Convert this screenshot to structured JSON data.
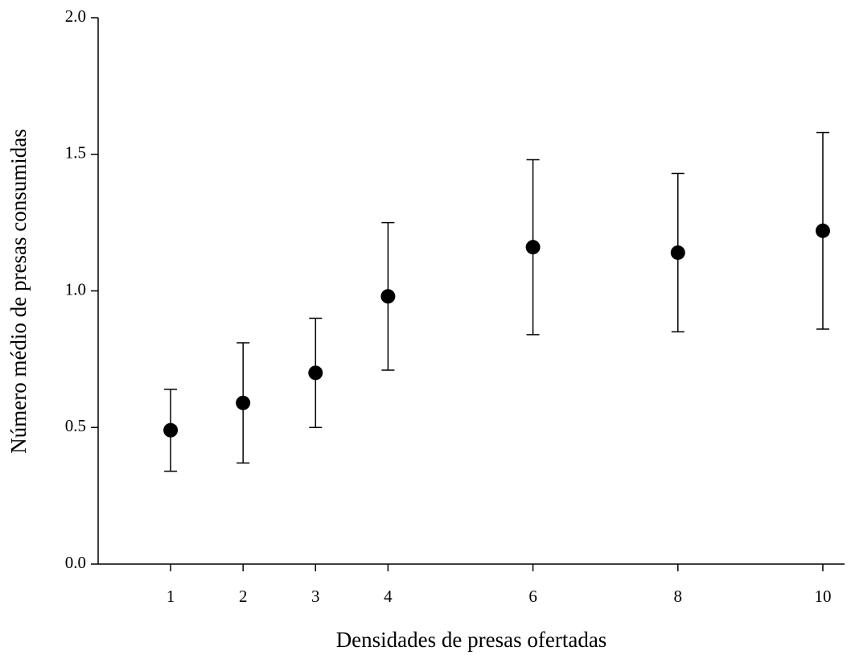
{
  "chart_data": {
    "type": "scatter",
    "x_label": "Densidades de presas ofertadas",
    "y_label": "Número médio de presas consumidas",
    "x": [
      1,
      2,
      3,
      4,
      6,
      8,
      10
    ],
    "values": [
      0.49,
      0.59,
      0.7,
      0.98,
      1.16,
      1.14,
      1.22
    ],
    "errors": [
      0.15,
      0.22,
      0.2,
      0.27,
      0.32,
      0.29,
      0.36
    ],
    "color": "#000000",
    "xlim": [
      0,
      10.3
    ],
    "xticks": [
      1,
      2,
      3,
      4,
      6,
      8,
      10
    ],
    "ylim": [
      0,
      2
    ],
    "yticks": [
      {
        "value": 0,
        "label": "0.0"
      },
      0.5,
      {
        "value": 1,
        "label": "1.0"
      },
      1.5,
      {
        "value": 2,
        "label": "2.0"
      }
    ]
  }
}
